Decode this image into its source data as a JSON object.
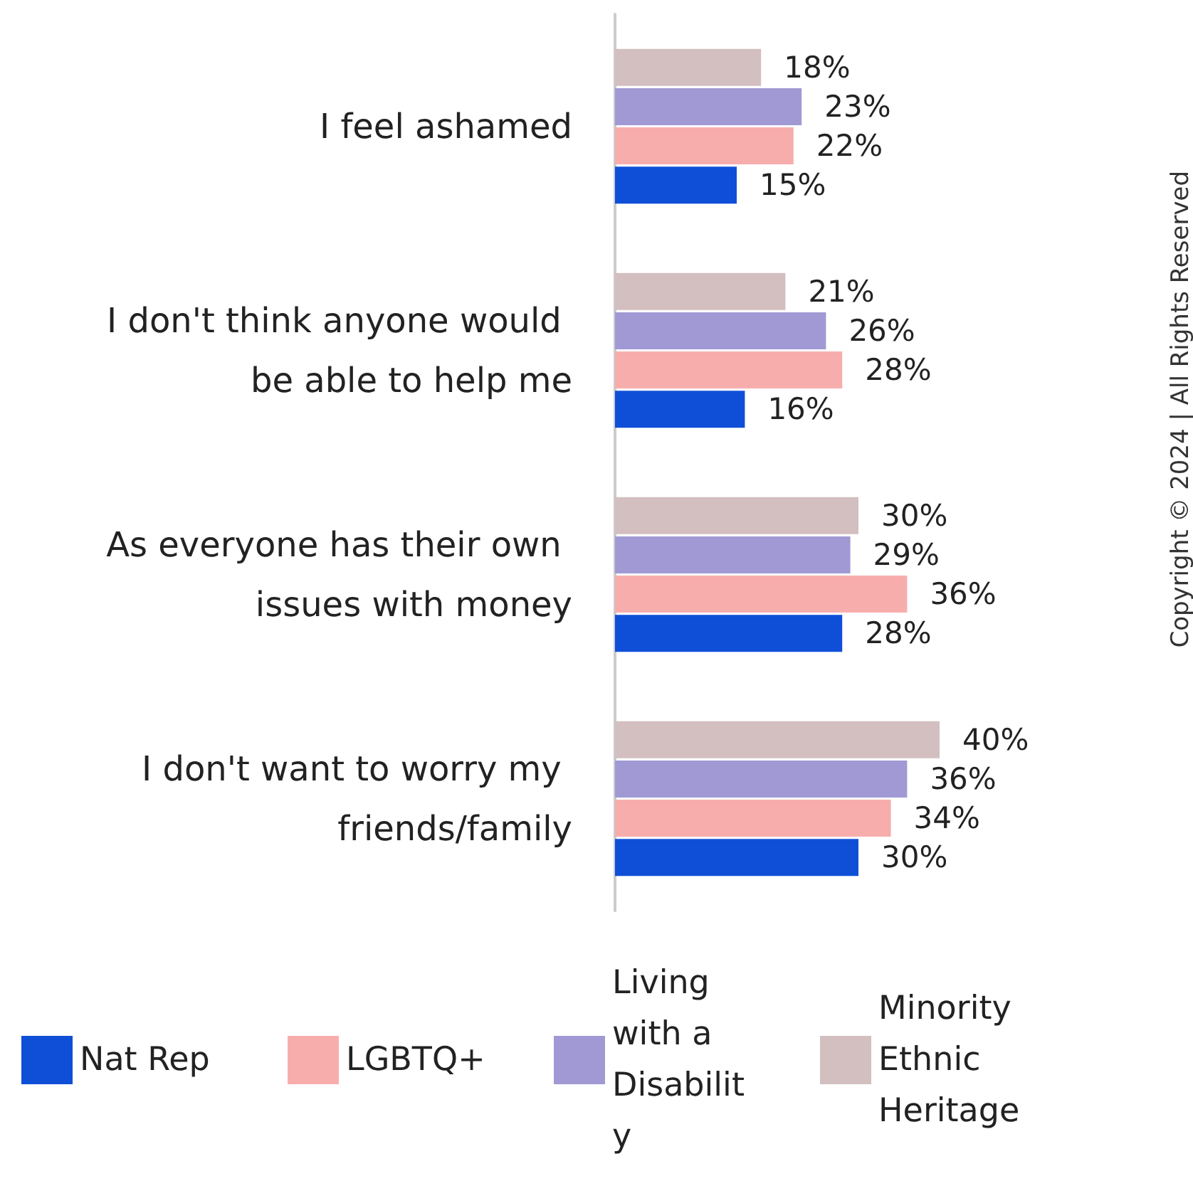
{
  "chart_data": {
    "type": "bar",
    "orientation": "horizontal",
    "categories": [
      "I feel ashamed",
      "I don't think anyone would be able to help me",
      "As everyone has their own issues with money",
      "I don't want to worry my friends/family"
    ],
    "series": [
      {
        "name": "Nat Rep",
        "color": "#0f4fd8",
        "values": [
          15,
          16,
          28,
          30
        ],
        "value_labels": [
          "15%",
          "16%",
          "28%",
          "30%"
        ]
      },
      {
        "name": "LGBTQ+",
        "color": "#f8adad",
        "values": [
          22,
          28,
          36,
          34
        ],
        "value_labels": [
          "22%",
          "28%",
          "36%",
          "34%"
        ]
      },
      {
        "name": "Living with a Disability",
        "color": "#a099d4",
        "values": [
          23,
          26,
          29,
          36
        ],
        "value_labels": [
          "23%",
          "26%",
          "29%",
          "36%"
        ]
      },
      {
        "name": "Minority Ethnic Heritage",
        "color": "#d3bfc0",
        "values": [
          18,
          21,
          30,
          40
        ],
        "value_labels": [
          "18%",
          "21%",
          "30%",
          "40%"
        ]
      }
    ],
    "tick_labels": "y",
    "grid": false,
    "legend": "bottom",
    "annotations": [
      "Copyright © 2024 | All Rights Reserved"
    ]
  }
}
